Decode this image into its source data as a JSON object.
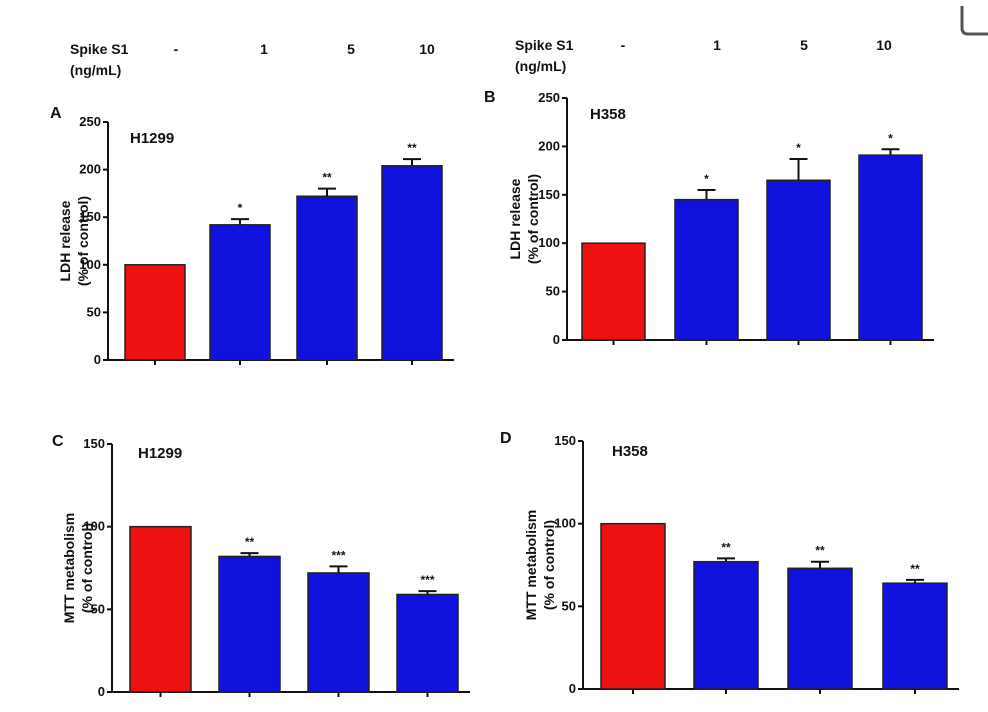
{
  "header": {
    "left": {
      "label_line1": "Spike S1",
      "label_line2": "(ng/mL)",
      "doses": [
        "-",
        "1",
        "5",
        "10"
      ]
    },
    "right": {
      "label_line1": "Spike S1",
      "label_line2": "(ng/mL)",
      "doses": [
        "-",
        "1",
        "5",
        "10"
      ]
    }
  },
  "colors": {
    "control": "#ee1111",
    "treated": "#1111dd",
    "axis": "#111111"
  },
  "chart_data": [
    {
      "panel": "A",
      "cell_line": "H1299",
      "type": "bar",
      "categories": [
        "-",
        "1",
        "5",
        "10"
      ],
      "values": [
        100,
        142,
        172,
        204
      ],
      "errors": [
        0,
        6,
        8,
        7
      ],
      "significance": [
        "",
        "*",
        "**",
        "**"
      ],
      "ylabel": [
        "LDH release",
        "(% of control)"
      ],
      "yticks": [
        0,
        50,
        100,
        150,
        200,
        250
      ],
      "ylim": [
        0,
        250
      ]
    },
    {
      "panel": "B",
      "cell_line": "H358",
      "type": "bar",
      "categories": [
        "-",
        "1",
        "5",
        "10"
      ],
      "values": [
        100,
        145,
        165,
        191
      ],
      "errors": [
        0,
        10,
        22,
        6
      ],
      "significance": [
        "",
        "*",
        "*",
        "*"
      ],
      "ylabel": [
        "LDH release",
        "(% of control)"
      ],
      "yticks": [
        0,
        50,
        100,
        150,
        200,
        250
      ],
      "ylim": [
        0,
        250
      ]
    },
    {
      "panel": "C",
      "cell_line": "H1299",
      "type": "bar",
      "categories": [
        "-",
        "1",
        "5",
        "10"
      ],
      "values": [
        100,
        82,
        72,
        59
      ],
      "errors": [
        0,
        2,
        4,
        2
      ],
      "significance": [
        "",
        "**",
        "***",
        "***"
      ],
      "ylabel": [
        "MTT metabolism",
        "(% of control)"
      ],
      "yticks": [
        0,
        50,
        100,
        150
      ],
      "ylim": [
        0,
        150
      ]
    },
    {
      "panel": "D",
      "cell_line": "H358",
      "type": "bar",
      "categories": [
        "-",
        "1",
        "5",
        "10"
      ],
      "values": [
        100,
        77,
        73,
        64
      ],
      "errors": [
        0,
        2,
        4,
        2
      ],
      "significance": [
        "",
        "**",
        "**",
        "**"
      ],
      "ylabel": [
        "MTT metabolism",
        "(% of control)"
      ],
      "yticks": [
        0,
        50,
        100,
        150
      ],
      "ylim": [
        0,
        150
      ]
    }
  ]
}
